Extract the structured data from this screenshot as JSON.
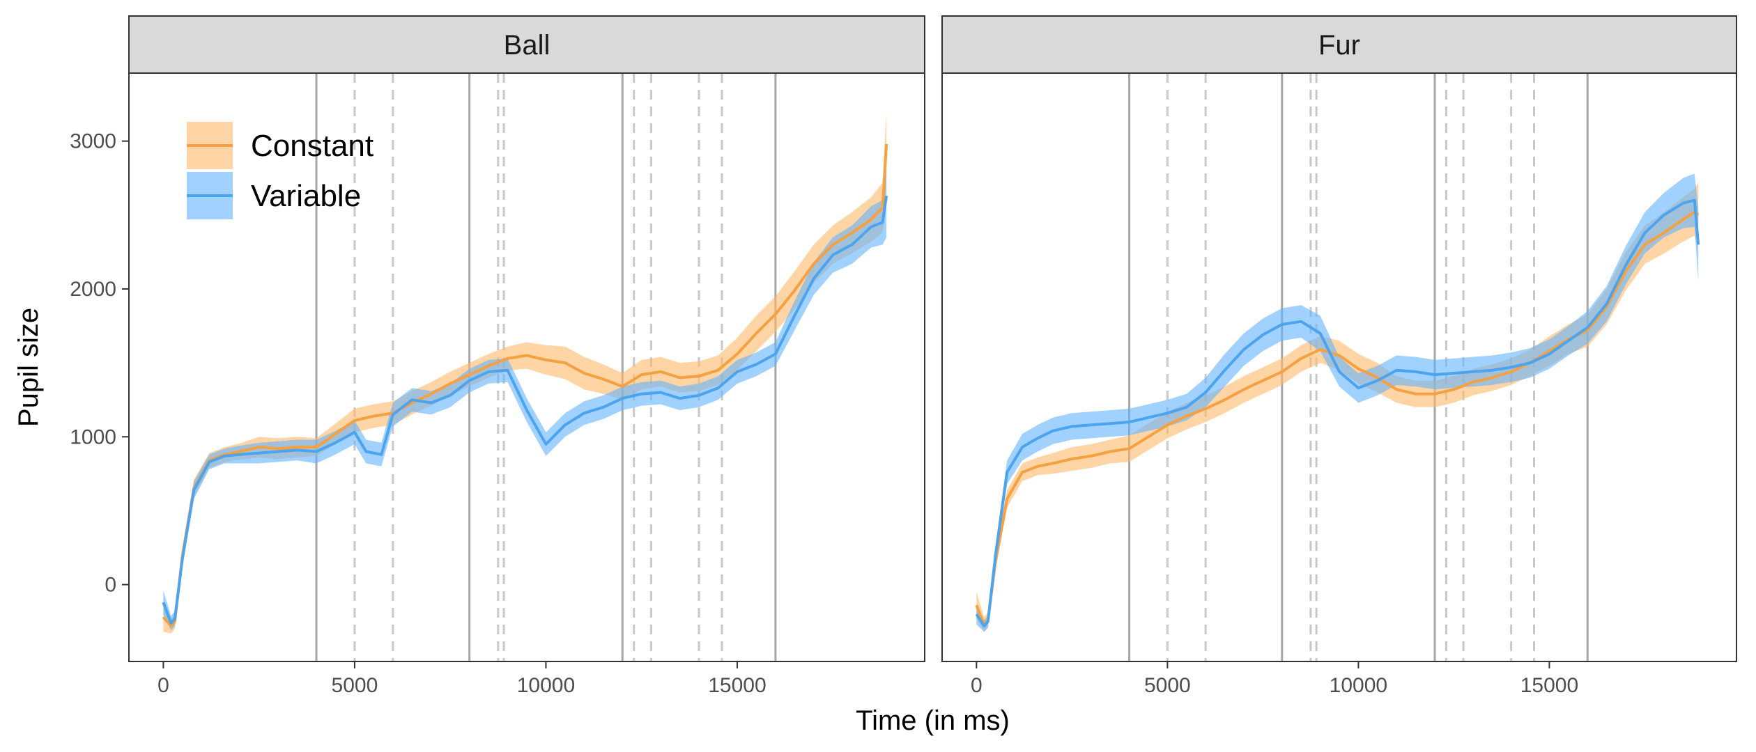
{
  "chart_data": {
    "type": "line",
    "xlabel": "Time (in ms)",
    "ylabel": "Pupil size",
    "xlim": [
      -900,
      19900
    ],
    "ylim": [
      -520,
      3460
    ],
    "x_ticks": [
      0,
      5000,
      10000,
      15000
    ],
    "x_tick_labels": [
      "0",
      "5000",
      "10000",
      "15000"
    ],
    "y_ticks": [
      0,
      1000,
      2000,
      3000
    ],
    "y_tick_labels": [
      "0",
      "1000",
      "2000",
      "3000"
    ],
    "grid": false,
    "legend_position": "top-left",
    "solid_vlines": [
      4000,
      8000,
      12000,
      16000
    ],
    "dashed_vlines": [
      5000,
      6000,
      8750,
      8900,
      12300,
      12750,
      14000,
      14600
    ],
    "colors": {
      "Constant": "#f5a142",
      "Variable": "#4ca3ee",
      "Constant_ribbon": "#ffb96b",
      "Variable_ribbon": "#62b4ff",
      "vline": "#a6a6a6",
      "strip_fill": "#d9d9d9"
    },
    "legend": [
      {
        "name": "Constant"
      },
      {
        "name": "Variable"
      }
    ],
    "panels": [
      {
        "title": "Ball",
        "series": [
          {
            "name": "Constant",
            "x": [
              0,
              200,
              300,
              500,
              800,
              1200,
              1600,
              2000,
              2500,
              3000,
              3500,
              4000,
              4500,
              5000,
              5500,
              6000,
              6500,
              7000,
              7500,
              8000,
              8500,
              9000,
              9500,
              10000,
              10500,
              11000,
              11500,
              12000,
              12500,
              13000,
              13500,
              14000,
              14500,
              15000,
              15500,
              16000,
              16500,
              17000,
              17500,
              18000,
              18500,
              18800,
              18900
            ],
            "y": [
              -220,
              -280,
              -250,
              200,
              650,
              840,
              880,
              900,
              930,
              920,
              930,
              930,
              1020,
              1110,
              1140,
              1160,
              1230,
              1290,
              1360,
              1420,
              1480,
              1530,
              1550,
              1520,
              1500,
              1430,
              1390,
              1340,
              1420,
              1440,
              1400,
              1410,
              1450,
              1560,
              1700,
              1830,
              1990,
              2170,
              2300,
              2380,
              2470,
              2550,
              2980
            ],
            "lower": [
              -320,
              -330,
              -300,
              140,
              590,
              790,
              830,
              845,
              860,
              850,
              860,
              870,
              950,
              1030,
              1060,
              1080,
              1150,
              1210,
              1280,
              1340,
              1400,
              1450,
              1460,
              1420,
              1390,
              1320,
              1290,
              1250,
              1320,
              1340,
              1300,
              1310,
              1350,
              1450,
              1580,
              1710,
              1860,
              2040,
              2170,
              2240,
              2320,
              2380,
              2600
            ],
            "upper": [
              -120,
              -230,
              -200,
              260,
              710,
              890,
              930,
              955,
              1000,
              990,
              1000,
              990,
              1090,
              1190,
              1220,
              1240,
              1310,
              1370,
              1440,
              1500,
              1560,
              1610,
              1640,
              1620,
              1610,
              1540,
              1490,
              1430,
              1520,
              1540,
              1500,
              1510,
              1550,
              1670,
              1820,
              1950,
              2120,
              2300,
              2430,
              2520,
              2620,
              2720,
              3200
            ]
          },
          {
            "name": "Variable",
            "x": [
              0,
              200,
              300,
              500,
              800,
              1200,
              1600,
              2000,
              2500,
              3000,
              3500,
              4000,
              4500,
              5000,
              5300,
              5700,
              6000,
              6500,
              7000,
              7500,
              8000,
              8500,
              9000,
              9500,
              10000,
              10500,
              11000,
              11500,
              12000,
              12500,
              13000,
              13500,
              14000,
              14500,
              15000,
              15500,
              16000,
              16500,
              17000,
              17500,
              18000,
              18500,
              18800,
              18900
            ],
            "y": [
              -120,
              -260,
              -230,
              180,
              640,
              830,
              870,
              880,
              890,
              900,
              910,
              900,
              960,
              1030,
              900,
              880,
              1150,
              1250,
              1230,
              1280,
              1380,
              1440,
              1450,
              1180,
              950,
              1080,
              1160,
              1200,
              1260,
              1290,
              1300,
              1260,
              1280,
              1330,
              1440,
              1490,
              1560,
              1820,
              2070,
              2230,
              2300,
              2420,
              2450,
              2630
            ],
            "lower": [
              -200,
              -310,
              -280,
              120,
              580,
              780,
              820,
              820,
              820,
              830,
              840,
              820,
              880,
              950,
              820,
              800,
              1070,
              1170,
              1150,
              1200,
              1300,
              1360,
              1370,
              1100,
              870,
              1000,
              1080,
              1120,
              1180,
              1210,
              1220,
              1180,
              1200,
              1250,
              1360,
              1410,
              1480,
              1720,
              1960,
              2110,
              2170,
              2280,
              2300,
              2350
            ],
            "upper": [
              -40,
              -210,
              -180,
              240,
              700,
              880,
              920,
              940,
              960,
              970,
              980,
              980,
              1040,
              1110,
              980,
              960,
              1230,
              1330,
              1310,
              1360,
              1460,
              1520,
              1530,
              1260,
              1030,
              1160,
              1240,
              1280,
              1340,
              1370,
              1380,
              1340,
              1360,
              1410,
              1520,
              1570,
              1640,
              1920,
              2180,
              2350,
              2430,
              2560,
              2600,
              2910
            ]
          }
        ]
      },
      {
        "title": "Fur",
        "series": [
          {
            "name": "Constant",
            "x": [
              0,
              200,
              300,
              500,
              800,
              1200,
              1600,
              2000,
              2500,
              3000,
              3500,
              4000,
              4500,
              5000,
              5500,
              6000,
              6500,
              7000,
              7500,
              8000,
              8500,
              9000,
              9500,
              10000,
              10500,
              11000,
              11500,
              12000,
              12500,
              13000,
              13500,
              14000,
              14500,
              15000,
              15500,
              16000,
              16500,
              17000,
              17500,
              18000,
              18500,
              18800,
              18900
            ],
            "y": [
              -140,
              -270,
              -240,
              160,
              580,
              760,
              800,
              820,
              850,
              870,
              900,
              920,
              1000,
              1080,
              1140,
              1190,
              1250,
              1320,
              1380,
              1440,
              1530,
              1590,
              1550,
              1460,
              1400,
              1320,
              1290,
              1290,
              1320,
              1370,
              1400,
              1440,
              1500,
              1580,
              1660,
              1720,
              1880,
              2120,
              2300,
              2380,
              2470,
              2520,
              2500
            ],
            "lower": [
              -230,
              -320,
              -290,
              100,
              520,
              700,
              740,
              750,
              770,
              790,
              820,
              830,
              910,
              990,
              1050,
              1100,
              1160,
              1230,
              1290,
              1350,
              1440,
              1500,
              1450,
              1360,
              1300,
              1230,
              1200,
              1200,
              1230,
              1280,
              1310,
              1350,
              1410,
              1480,
              1560,
              1610,
              1760,
              1990,
              2170,
              2240,
              2320,
              2360,
              2280
            ],
            "upper": [
              -50,
              -220,
              -190,
              220,
              640,
              820,
              860,
              890,
              930,
              950,
              980,
              1010,
              1090,
              1170,
              1230,
              1280,
              1340,
              1410,
              1470,
              1530,
              1620,
              1680,
              1650,
              1560,
              1500,
              1410,
              1380,
              1380,
              1410,
              1460,
              1490,
              1530,
              1590,
              1680,
              1760,
              1830,
              2000,
              2250,
              2430,
              2520,
              2620,
              2680,
              2720
            ]
          },
          {
            "name": "Variable",
            "x": [
              0,
              200,
              300,
              500,
              800,
              1200,
              1600,
              2000,
              2500,
              3000,
              3500,
              4000,
              4500,
              5000,
              5500,
              6000,
              6500,
              7000,
              7500,
              8000,
              8500,
              9000,
              9500,
              10000,
              10500,
              11000,
              11500,
              12000,
              12500,
              13000,
              13500,
              14000,
              14500,
              15000,
              15500,
              16000,
              16500,
              17000,
              17500,
              18000,
              18500,
              18800,
              18900
            ],
            "y": [
              -200,
              -280,
              -250,
              200,
              760,
              930,
              990,
              1040,
              1070,
              1080,
              1090,
              1100,
              1130,
              1160,
              1200,
              1300,
              1450,
              1590,
              1690,
              1760,
              1780,
              1700,
              1440,
              1330,
              1380,
              1450,
              1440,
              1420,
              1430,
              1440,
              1450,
              1470,
              1500,
              1560,
              1650,
              1740,
              1900,
              2160,
              2380,
              2500,
              2580,
              2600,
              2300
            ],
            "lower": [
              -270,
              -320,
              -290,
              140,
              680,
              840,
              900,
              950,
              980,
              990,
              1000,
              1010,
              1040,
              1070,
              1110,
              1200,
              1340,
              1480,
              1580,
              1650,
              1670,
              1580,
              1340,
              1230,
              1280,
              1350,
              1340,
              1320,
              1330,
              1340,
              1350,
              1370,
              1400,
              1460,
              1550,
              1630,
              1780,
              2030,
              2240,
              2350,
              2410,
              2420,
              2050
            ],
            "upper": [
              -130,
              -240,
              -210,
              260,
              840,
              1020,
              1080,
              1130,
              1160,
              1170,
              1180,
              1190,
              1220,
              1250,
              1290,
              1400,
              1560,
              1700,
              1800,
              1870,
              1890,
              1820,
              1540,
              1430,
              1480,
              1550,
              1540,
              1520,
              1530,
              1540,
              1550,
              1570,
              1600,
              1660,
              1750,
              1850,
              2020,
              2290,
              2520,
              2650,
              2750,
              2780,
              2550
            ]
          }
        ]
      }
    ]
  }
}
